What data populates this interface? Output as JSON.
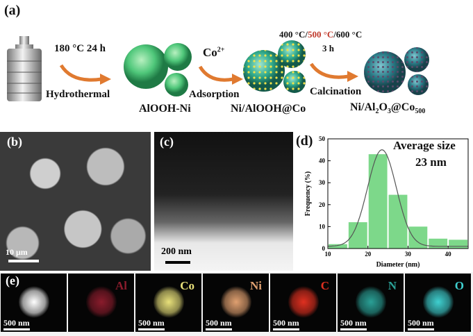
{
  "panel_labels": {
    "a": "(a)",
    "b": "(b)",
    "c": "(c)",
    "d": "(d)",
    "e": "(e)"
  },
  "scheme": {
    "step1_condition": "180 °C  24 h",
    "step1_name": "Hydrothermal",
    "product1": "AlOOH-Ni",
    "step2_reagent": "Co",
    "step2_reagent_sup": "2+",
    "step2_name": "Adsorption",
    "product2": "Ni/AlOOH@Co",
    "step3_temp_a": "400 °C/",
    "step3_temp_b": "500 °C",
    "step3_temp_c": "/600 °C",
    "step3_time": "3 h",
    "step3_name": "Calcination",
    "product3_main": "Ni/Al",
    "product3_sub1": "2",
    "product3_mid": "O",
    "product3_sub2": "3",
    "product3_end": "@Co",
    "product3_sub3": "500",
    "accent_color": "#e07a30",
    "highlight_color": "#c0392b"
  },
  "sem": {
    "scale_bar": "10 μm"
  },
  "tem": {
    "scale_bar": "200 nm"
  },
  "chart_data": {
    "type": "bar",
    "annotation": "Average size",
    "annotation_value": "23 nm",
    "xlabel": "Diameter (nm)",
    "ylabel": "Frequency (%)",
    "xlim": [
      10,
      45
    ],
    "ylim": [
      0,
      50
    ],
    "xticks": [
      10,
      20,
      30,
      40
    ],
    "yticks": [
      0,
      10,
      20,
      30,
      40,
      50
    ],
    "bin_edges": [
      10,
      15,
      20,
      25,
      30,
      35,
      40,
      45
    ],
    "values": [
      2,
      12,
      43,
      24.5,
      10,
      4.5,
      4
    ],
    "bar_color": "#7dd88a",
    "fit_curve_mean": 23.5,
    "fit_curve_sd": 3.6,
    "fit_curve_peak": 44
  },
  "eds": {
    "maps": [
      {
        "element": "",
        "scale": "500 nm",
        "color": "#ffffff"
      },
      {
        "element": "Al",
        "scale": "",
        "color": "#8a1c2c"
      },
      {
        "element": "Co",
        "scale": "500 nm",
        "color": "#e8e07a"
      },
      {
        "element": "Ni",
        "scale": "500 nm",
        "color": "#e0a070"
      },
      {
        "element": "C",
        "scale": "500 nm",
        "color": "#e03020"
      },
      {
        "element": "N",
        "scale": "500 nm",
        "color": "#2aa096"
      },
      {
        "element": "O",
        "scale": "500 nm",
        "color": "#3fd0d0"
      }
    ]
  }
}
